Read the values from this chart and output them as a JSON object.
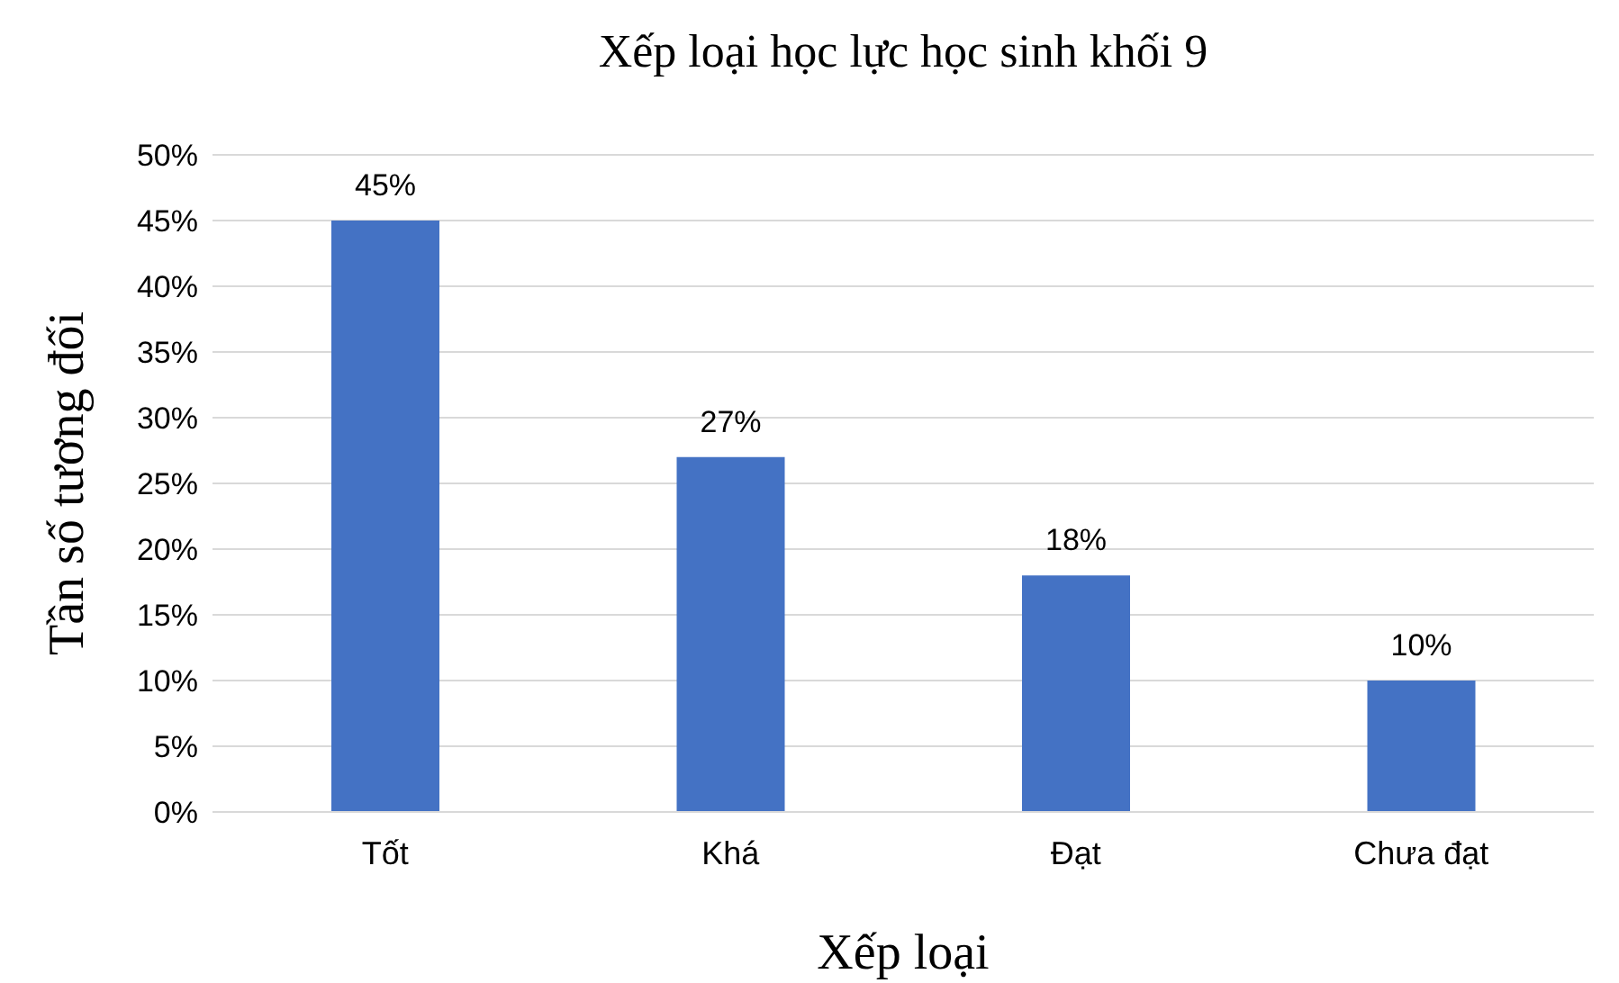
{
  "chart_data": {
    "type": "bar",
    "title": "Xếp loại học lực học sinh khối 9",
    "xlabel": "Xếp loại",
    "ylabel": "Tần số tương đối",
    "categories": [
      "Tốt",
      "Khá",
      "Đạt",
      "Chưa đạt"
    ],
    "values": [
      45,
      27,
      18,
      10
    ],
    "value_labels": [
      "45%",
      "27%",
      "18%",
      "10%"
    ],
    "color": "#4472c4",
    "ylim": [
      0,
      50
    ],
    "yticks": [
      {
        "value": 0,
        "label": "0%"
      },
      {
        "value": 5,
        "label": "5%"
      },
      {
        "value": 10,
        "label": "10%"
      },
      {
        "value": 15,
        "label": "15%"
      },
      {
        "value": 20,
        "label": "20%"
      },
      {
        "value": 25,
        "label": "25%"
      },
      {
        "value": 30,
        "label": "30%"
      },
      {
        "value": 35,
        "label": "35%"
      },
      {
        "value": 40,
        "label": "40%"
      },
      {
        "value": 45,
        "label": "45%"
      },
      {
        "value": 50,
        "label": "50%"
      }
    ],
    "grid": "y",
    "legend": false
  }
}
